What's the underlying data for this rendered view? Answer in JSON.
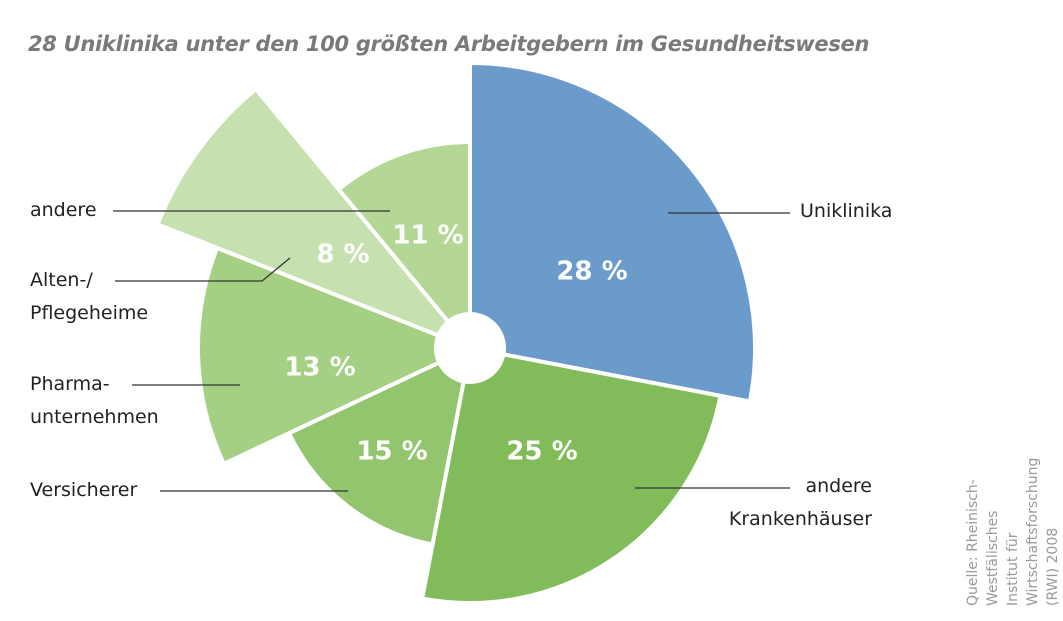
{
  "chart_data": {
    "type": "pie",
    "title": "28 Uniklinika unter den 100 größten Arbeitgebern im Gesundheitswesen",
    "categories": [
      "Uniklinika",
      "andere\nKrankenhäuser",
      "Versicherer",
      "Pharma-\nunternehmen",
      "Alten-/\nPflegeheime",
      "andere"
    ],
    "values": [
      28,
      25,
      15,
      13,
      8,
      11
    ],
    "value_labels": [
      "28 %",
      "25 %",
      "15 %",
      "13 %",
      "8 %",
      "11 %"
    ],
    "colors": [
      "#6a9bcb",
      "#82bc5a",
      "#93c46e",
      "#a5cf83",
      "#c6e0b0",
      "#b4d795"
    ],
    "source": "Quelle: Rheinisch-Westfälisches Institut für\nWirtschaftsforschung (RWI) 2008"
  }
}
